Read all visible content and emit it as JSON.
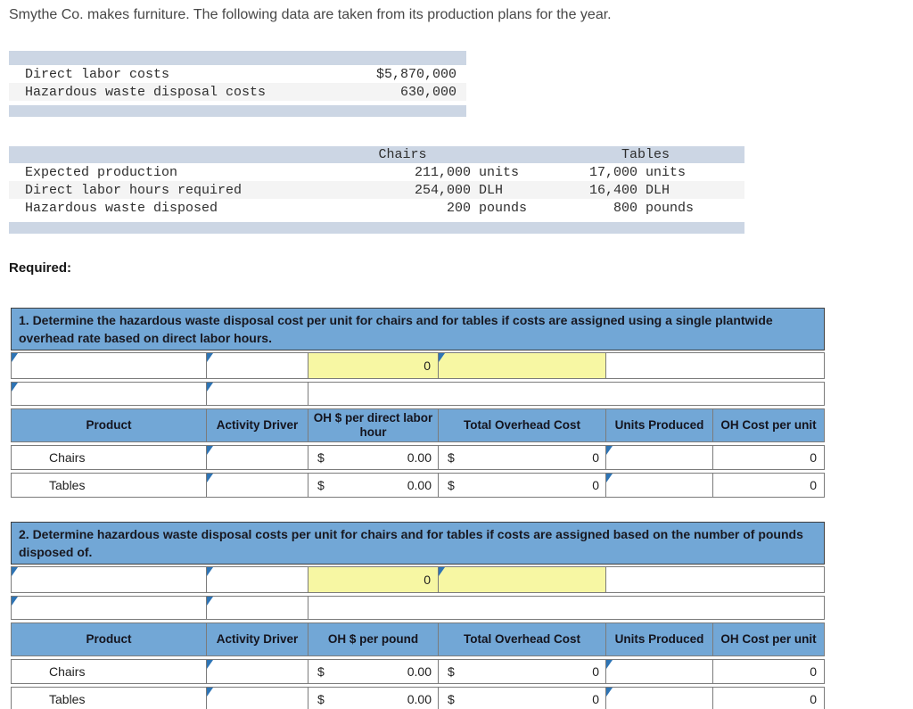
{
  "intro": "Smythe Co. makes furniture. The following data are taken from its production plans for the year.",
  "required_label": "Required:",
  "cost_table": {
    "rows": [
      {
        "label": "Direct labor costs",
        "value": "$5,870,000"
      },
      {
        "label": "Hazardous waste disposal costs",
        "value": "630,000"
      }
    ]
  },
  "production_table": {
    "col_headers": [
      "Chairs",
      "Tables"
    ],
    "rows": [
      {
        "label": "Expected production",
        "chairs_num": "211,000",
        "chairs_unit": "units",
        "tables_num": "17,000",
        "tables_unit": "units"
      },
      {
        "label": "Direct labor hours required",
        "chairs_num": "254,000",
        "chairs_unit": "DLH",
        "tables_num": "16,400",
        "tables_unit": "DLH"
      },
      {
        "label": "Hazardous waste disposed",
        "chairs_num": "200",
        "chairs_unit": "pounds",
        "tables_num": "800",
        "tables_unit": "pounds"
      }
    ]
  },
  "sections": [
    {
      "title": "1.  Determine the hazardous waste disposal cost per unit for chairs and for tables if costs are assigned using a single plantwide overhead rate based on direct labor hours.",
      "input_value": "0",
      "table": {
        "headers": [
          "Product",
          "Activity Driver",
          "OH $ per direct labor hour",
          "Total Overhead Cost",
          "Units Produced",
          "OH Cost per unit"
        ],
        "rows": [
          {
            "product": "Chairs",
            "currency": "$",
            "rate": "0.00",
            "total_currency": "$",
            "total": "0",
            "units_produced": "",
            "oh_per_unit": "0"
          },
          {
            "product": "Tables",
            "currency": "$",
            "rate": "0.00",
            "total_currency": "$",
            "total": "0",
            "units_produced": "",
            "oh_per_unit": "0"
          }
        ]
      }
    },
    {
      "title": "2.  Determine hazardous waste disposal costs per unit for chairs and for tables if costs are assigned based on the number of pounds disposed of.",
      "input_value": "0",
      "table": {
        "headers": [
          "Product",
          "Activity Driver",
          "OH $ per pound",
          "Total Overhead Cost",
          "Units Produced",
          "OH Cost per unit"
        ],
        "rows": [
          {
            "product": "Chairs",
            "currency": "$",
            "rate": "0.00",
            "total_currency": "$",
            "total": "0",
            "units_produced": "",
            "oh_per_unit": "0"
          },
          {
            "product": "Tables",
            "currency": "$",
            "rate": "0.00",
            "total_currency": "$",
            "total": "0",
            "units_produced": "",
            "oh_per_unit": "0"
          }
        ]
      }
    }
  ],
  "colors": {
    "worksheet_header_blue": "#72a7d6",
    "input_cell_yellow": "#f7f7a3",
    "answer_marker_blue": "#2e74b5",
    "table_band_blue_gray": "#ccd6e4",
    "alt_row_gray": "#f4f4f4"
  }
}
